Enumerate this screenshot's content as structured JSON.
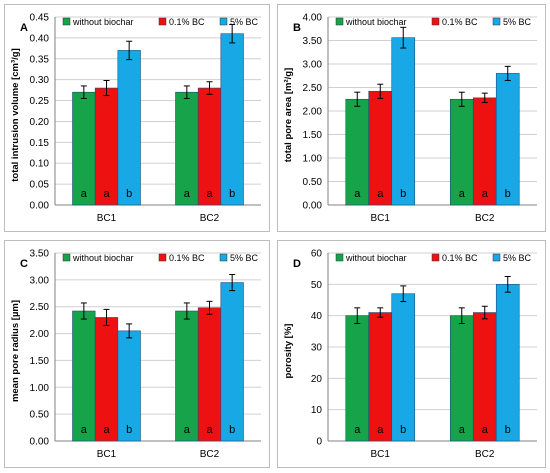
{
  "colors": {
    "without biochar": "#16a34a",
    "0.1% BC": "#ee1111",
    "5% BC": "#18a8e6",
    "grid": "#d0d0d0",
    "axis": "#808080",
    "error": "#000000"
  },
  "chart_data": [
    {
      "type": "bar",
      "panel_label": "A",
      "title": "",
      "xlabel": "",
      "ylabel": "total intrusion volume [cm³/g]",
      "ylim": [
        0,
        0.45
      ],
      "ytick_step": 0.05,
      "ytick_decimals": 2,
      "categories": [
        "BC1",
        "BC2"
      ],
      "series": [
        {
          "name": "without biochar",
          "values": [
            0.27,
            0.27
          ],
          "errors": [
            0.015,
            0.015
          ],
          "significance": [
            "a",
            "a"
          ]
        },
        {
          "name": "0.1% BC",
          "values": [
            0.28,
            0.28
          ],
          "errors": [
            0.018,
            0.015
          ],
          "significance": [
            "a",
            "a"
          ]
        },
        {
          "name": "5% BC",
          "values": [
            0.37,
            0.41
          ],
          "errors": [
            0.022,
            0.022
          ],
          "significance": [
            "b",
            "b"
          ]
        }
      ],
      "grid": true,
      "legend": "top"
    },
    {
      "type": "bar",
      "panel_label": "B",
      "title": "",
      "xlabel": "",
      "ylabel": "total pore area [m²/g]",
      "ylim": [
        0,
        4.0
      ],
      "ytick_step": 0.5,
      "ytick_decimals": 2,
      "categories": [
        "BC1",
        "BC2"
      ],
      "series": [
        {
          "name": "without biochar",
          "values": [
            2.25,
            2.25
          ],
          "errors": [
            0.15,
            0.15
          ],
          "significance": [
            "a",
            "a"
          ]
        },
        {
          "name": "0.1% BC",
          "values": [
            2.42,
            2.28
          ],
          "errors": [
            0.15,
            0.1
          ],
          "significance": [
            "a",
            "a"
          ]
        },
        {
          "name": "5% BC",
          "values": [
            3.56,
            2.8
          ],
          "errors": [
            0.22,
            0.15
          ],
          "significance": [
            "b",
            "b"
          ]
        }
      ],
      "grid": true,
      "legend": "top"
    },
    {
      "type": "bar",
      "panel_label": "C",
      "title": "",
      "xlabel": "",
      "ylabel": "mean pore radius [µm]",
      "ylim": [
        0,
        3.5
      ],
      "ytick_step": 0.5,
      "ytick_decimals": 2,
      "categories": [
        "BC1",
        "BC2"
      ],
      "series": [
        {
          "name": "without biochar",
          "values": [
            2.42,
            2.42
          ],
          "errors": [
            0.15,
            0.15
          ],
          "significance": [
            "a",
            "a"
          ]
        },
        {
          "name": "0.1% BC",
          "values": [
            2.3,
            2.48
          ],
          "errors": [
            0.15,
            0.12
          ],
          "significance": [
            "a",
            "a"
          ]
        },
        {
          "name": "5% BC",
          "values": [
            2.05,
            2.95
          ],
          "errors": [
            0.13,
            0.15
          ],
          "significance": [
            "b",
            "b"
          ]
        }
      ],
      "grid": true,
      "legend": "top"
    },
    {
      "type": "bar",
      "panel_label": "D",
      "title": "",
      "xlabel": "",
      "ylabel": "porosity [%]",
      "ylim": [
        0,
        60
      ],
      "ytick_step": 10,
      "ytick_decimals": 0,
      "categories": [
        "BC1",
        "BC2"
      ],
      "series": [
        {
          "name": "without biochar",
          "values": [
            40,
            40
          ],
          "errors": [
            2.5,
            2.5
          ],
          "significance": [
            "a",
            "a"
          ]
        },
        {
          "name": "0.1% BC",
          "values": [
            41,
            41
          ],
          "errors": [
            1.5,
            2.0
          ],
          "significance": [
            "a",
            "a"
          ]
        },
        {
          "name": "5% BC",
          "values": [
            47,
            50
          ],
          "errors": [
            2.5,
            2.5
          ],
          "significance": [
            "b",
            "b"
          ]
        }
      ],
      "grid": true,
      "legend": "top"
    }
  ]
}
